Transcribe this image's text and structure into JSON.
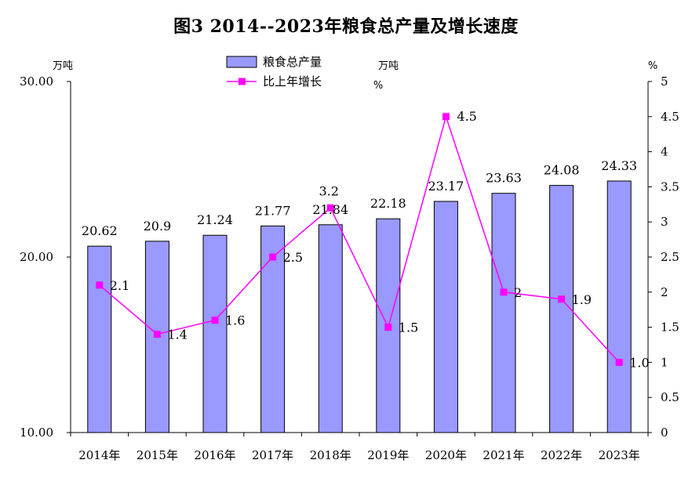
{
  "chart_data": {
    "type": "bar",
    "title": "图3  2014--2023年粮食总产量及增长速度",
    "categories": [
      "2014年",
      "2015年",
      "2016年",
      "2017年",
      "2018年",
      "2019年",
      "2020年",
      "2021年",
      "2022年",
      "2023年"
    ],
    "series": [
      {
        "name": "粮食总产量",
        "type": "bar",
        "axis": "left",
        "values": [
          20.62,
          20.9,
          21.24,
          21.77,
          21.84,
          22.18,
          23.17,
          23.63,
          24.08,
          24.33
        ],
        "labels": [
          "20.62",
          "20.9",
          "21.24",
          "21.77",
          "21.84",
          "22.18",
          "23.17",
          "23.63",
          "24.08",
          "24.33"
        ],
        "color": "#9999ff"
      },
      {
        "name": "比上年增长",
        "type": "line",
        "axis": "right",
        "values": [
          2.1,
          1.4,
          1.6,
          2.5,
          3.2,
          1.5,
          4.5,
          2,
          1.9,
          1.0
        ],
        "labels": [
          "2.1",
          "1.4",
          "1.6",
          "2.5",
          "3.2",
          "1.5",
          "4.5",
          "2",
          "1.9",
          "1.0"
        ],
        "color": "#ff00ff"
      }
    ],
    "y_left": {
      "unit": "万吨",
      "range": [
        10,
        30
      ],
      "ticks": [
        10,
        20,
        30
      ],
      "tick_labels": [
        "10.00",
        "20.00",
        "30.00"
      ]
    },
    "y_right": {
      "unit": "%",
      "range": [
        0,
        5
      ],
      "ticks": [
        0,
        0.5,
        1,
        1.5,
        2,
        2.5,
        3,
        3.5,
        4,
        4.5,
        5
      ],
      "tick_labels": [
        "0",
        "0.5",
        "1",
        "1.5",
        "2",
        "2.5",
        "3",
        "3.5",
        "4",
        "4.5",
        "5"
      ]
    },
    "legend_extra_units": [
      "万吨",
      "%"
    ],
    "legend_position": "top-center",
    "grid": false
  }
}
